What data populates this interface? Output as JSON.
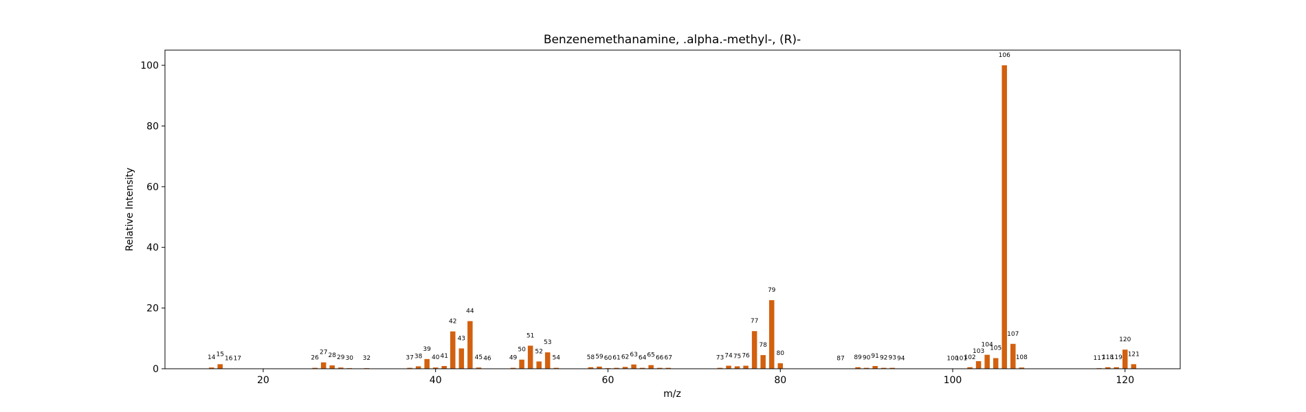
{
  "chart_data": {
    "type": "bar",
    "title": "Benzenemethanamine, .alpha.-methyl-, (R)-",
    "xlabel": "m/z",
    "ylabel": "Relative Intensity",
    "xlim": [
      8.6,
      126.4
    ],
    "ylim": [
      0,
      105
    ],
    "xticks": [
      20,
      40,
      60,
      80,
      100,
      120
    ],
    "yticks": [
      0,
      20,
      40,
      60,
      80,
      100
    ],
    "bar_color": "#d2600f",
    "grid": false,
    "peaks": [
      {
        "mz": 14,
        "intensity": 0.4
      },
      {
        "mz": 15,
        "intensity": 1.5
      },
      {
        "mz": 16,
        "intensity": 0.1
      },
      {
        "mz": 17,
        "intensity": 0.1
      },
      {
        "mz": 26,
        "intensity": 0.3
      },
      {
        "mz": 27,
        "intensity": 2.1
      },
      {
        "mz": 28,
        "intensity": 1.1
      },
      {
        "mz": 29,
        "intensity": 0.4
      },
      {
        "mz": 30,
        "intensity": 0.2
      },
      {
        "mz": 32,
        "intensity": 0.2
      },
      {
        "mz": 37,
        "intensity": 0.3
      },
      {
        "mz": 38,
        "intensity": 0.8
      },
      {
        "mz": 39,
        "intensity": 3.2
      },
      {
        "mz": 40,
        "intensity": 0.4
      },
      {
        "mz": 41,
        "intensity": 0.9
      },
      {
        "mz": 42,
        "intensity": 12.3
      },
      {
        "mz": 43,
        "intensity": 6.7
      },
      {
        "mz": 44,
        "intensity": 15.7
      },
      {
        "mz": 45,
        "intensity": 0.4
      },
      {
        "mz": 46,
        "intensity": 0.1
      },
      {
        "mz": 49,
        "intensity": 0.3
      },
      {
        "mz": 50,
        "intensity": 3.0
      },
      {
        "mz": 51,
        "intensity": 7.6
      },
      {
        "mz": 52,
        "intensity": 2.4
      },
      {
        "mz": 53,
        "intensity": 5.4
      },
      {
        "mz": 54,
        "intensity": 0.3
      },
      {
        "mz": 58,
        "intensity": 0.5
      },
      {
        "mz": 59,
        "intensity": 0.7
      },
      {
        "mz": 60,
        "intensity": 0.2
      },
      {
        "mz": 61,
        "intensity": 0.3
      },
      {
        "mz": 62,
        "intensity": 0.6
      },
      {
        "mz": 63,
        "intensity": 1.4
      },
      {
        "mz": 64,
        "intensity": 0.3
      },
      {
        "mz": 65,
        "intensity": 1.2
      },
      {
        "mz": 66,
        "intensity": 0.3
      },
      {
        "mz": 67,
        "intensity": 0.3
      },
      {
        "mz": 73,
        "intensity": 0.3
      },
      {
        "mz": 74,
        "intensity": 1.0
      },
      {
        "mz": 75,
        "intensity": 0.8
      },
      {
        "mz": 76,
        "intensity": 1.0
      },
      {
        "mz": 77,
        "intensity": 12.4
      },
      {
        "mz": 78,
        "intensity": 4.5
      },
      {
        "mz": 79,
        "intensity": 22.6
      },
      {
        "mz": 80,
        "intensity": 1.8
      },
      {
        "mz": 87,
        "intensity": 0.1
      },
      {
        "mz": 89,
        "intensity": 0.5
      },
      {
        "mz": 90,
        "intensity": 0.3
      },
      {
        "mz": 91,
        "intensity": 0.9
      },
      {
        "mz": 92,
        "intensity": 0.3
      },
      {
        "mz": 93,
        "intensity": 0.3
      },
      {
        "mz": 94,
        "intensity": 0.1
      },
      {
        "mz": 100,
        "intensity": 0.1
      },
      {
        "mz": 101,
        "intensity": 0.1
      },
      {
        "mz": 102,
        "intensity": 0.5
      },
      {
        "mz": 103,
        "intensity": 2.5
      },
      {
        "mz": 104,
        "intensity": 4.6
      },
      {
        "mz": 105,
        "intensity": 3.5
      },
      {
        "mz": 106,
        "intensity": 100
      },
      {
        "mz": 107,
        "intensity": 8.2
      },
      {
        "mz": 108,
        "intensity": 0.4
      },
      {
        "mz": 117,
        "intensity": 0.2
      },
      {
        "mz": 118,
        "intensity": 0.5
      },
      {
        "mz": 119,
        "intensity": 0.5
      },
      {
        "mz": 120,
        "intensity": 6.3
      },
      {
        "mz": 121,
        "intensity": 1.5
      }
    ]
  }
}
